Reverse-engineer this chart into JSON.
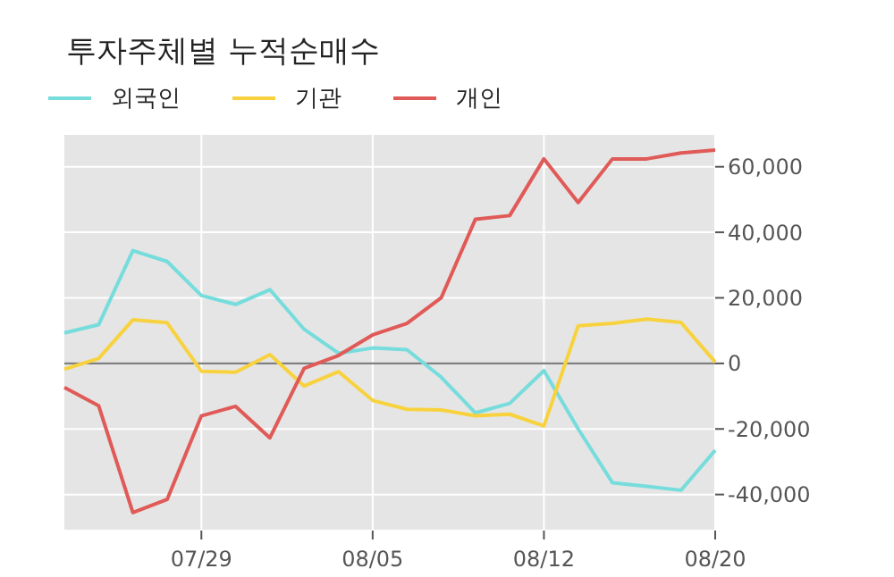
{
  "chart_data": {
    "type": "line",
    "title": "투자주체별 누적순매수",
    "categories": [
      null,
      null,
      null,
      null,
      "07/29",
      null,
      null,
      null,
      null,
      "08/05",
      null,
      null,
      null,
      null,
      "08/12",
      null,
      null,
      null,
      null,
      "08/20"
    ],
    "series": [
      {
        "name": "외국인",
        "color": "#76dcdc",
        "values": [
          9300,
          11800,
          34400,
          31100,
          20700,
          18000,
          22500,
          10400,
          3100,
          4700,
          4200,
          -4200,
          -15100,
          -12200,
          -2200,
          -20000,
          -36400,
          -37500,
          -38700,
          -26500
        ]
      },
      {
        "name": "기관",
        "color": "#f8d23e",
        "values": [
          -1800,
          1500,
          13300,
          12400,
          -2400,
          -2700,
          2700,
          -6900,
          -2500,
          -11300,
          -14000,
          -14200,
          -16000,
          -15500,
          -19100,
          11500,
          12200,
          13500,
          12500,
          400
        ]
      },
      {
        "name": "개인",
        "color": "#e05a57",
        "values": [
          -7300,
          -12900,
          -45500,
          -41500,
          -16000,
          -13100,
          -22700,
          -1500,
          2400,
          8700,
          12200,
          20000,
          44000,
          45100,
          62400,
          49100,
          62400,
          62400,
          64200,
          65100
        ]
      }
    ],
    "ylim": [
      -51000,
      70000
    ],
    "yticks": [
      {
        "value": -40000,
        "label": "-40,000"
      },
      {
        "value": -20000,
        "label": "-20,000"
      },
      0,
      {
        "value": 20000,
        "label": "20,000"
      },
      {
        "value": 40000,
        "label": "40,000"
      },
      {
        "value": 60000,
        "label": "60,000"
      }
    ],
    "grid": true,
    "legend": "top left",
    "marker": "none",
    "line_style": "solid",
    "ref_lines": [
      {
        "axis": "y",
        "value": 0,
        "color": "#808080"
      }
    ]
  }
}
